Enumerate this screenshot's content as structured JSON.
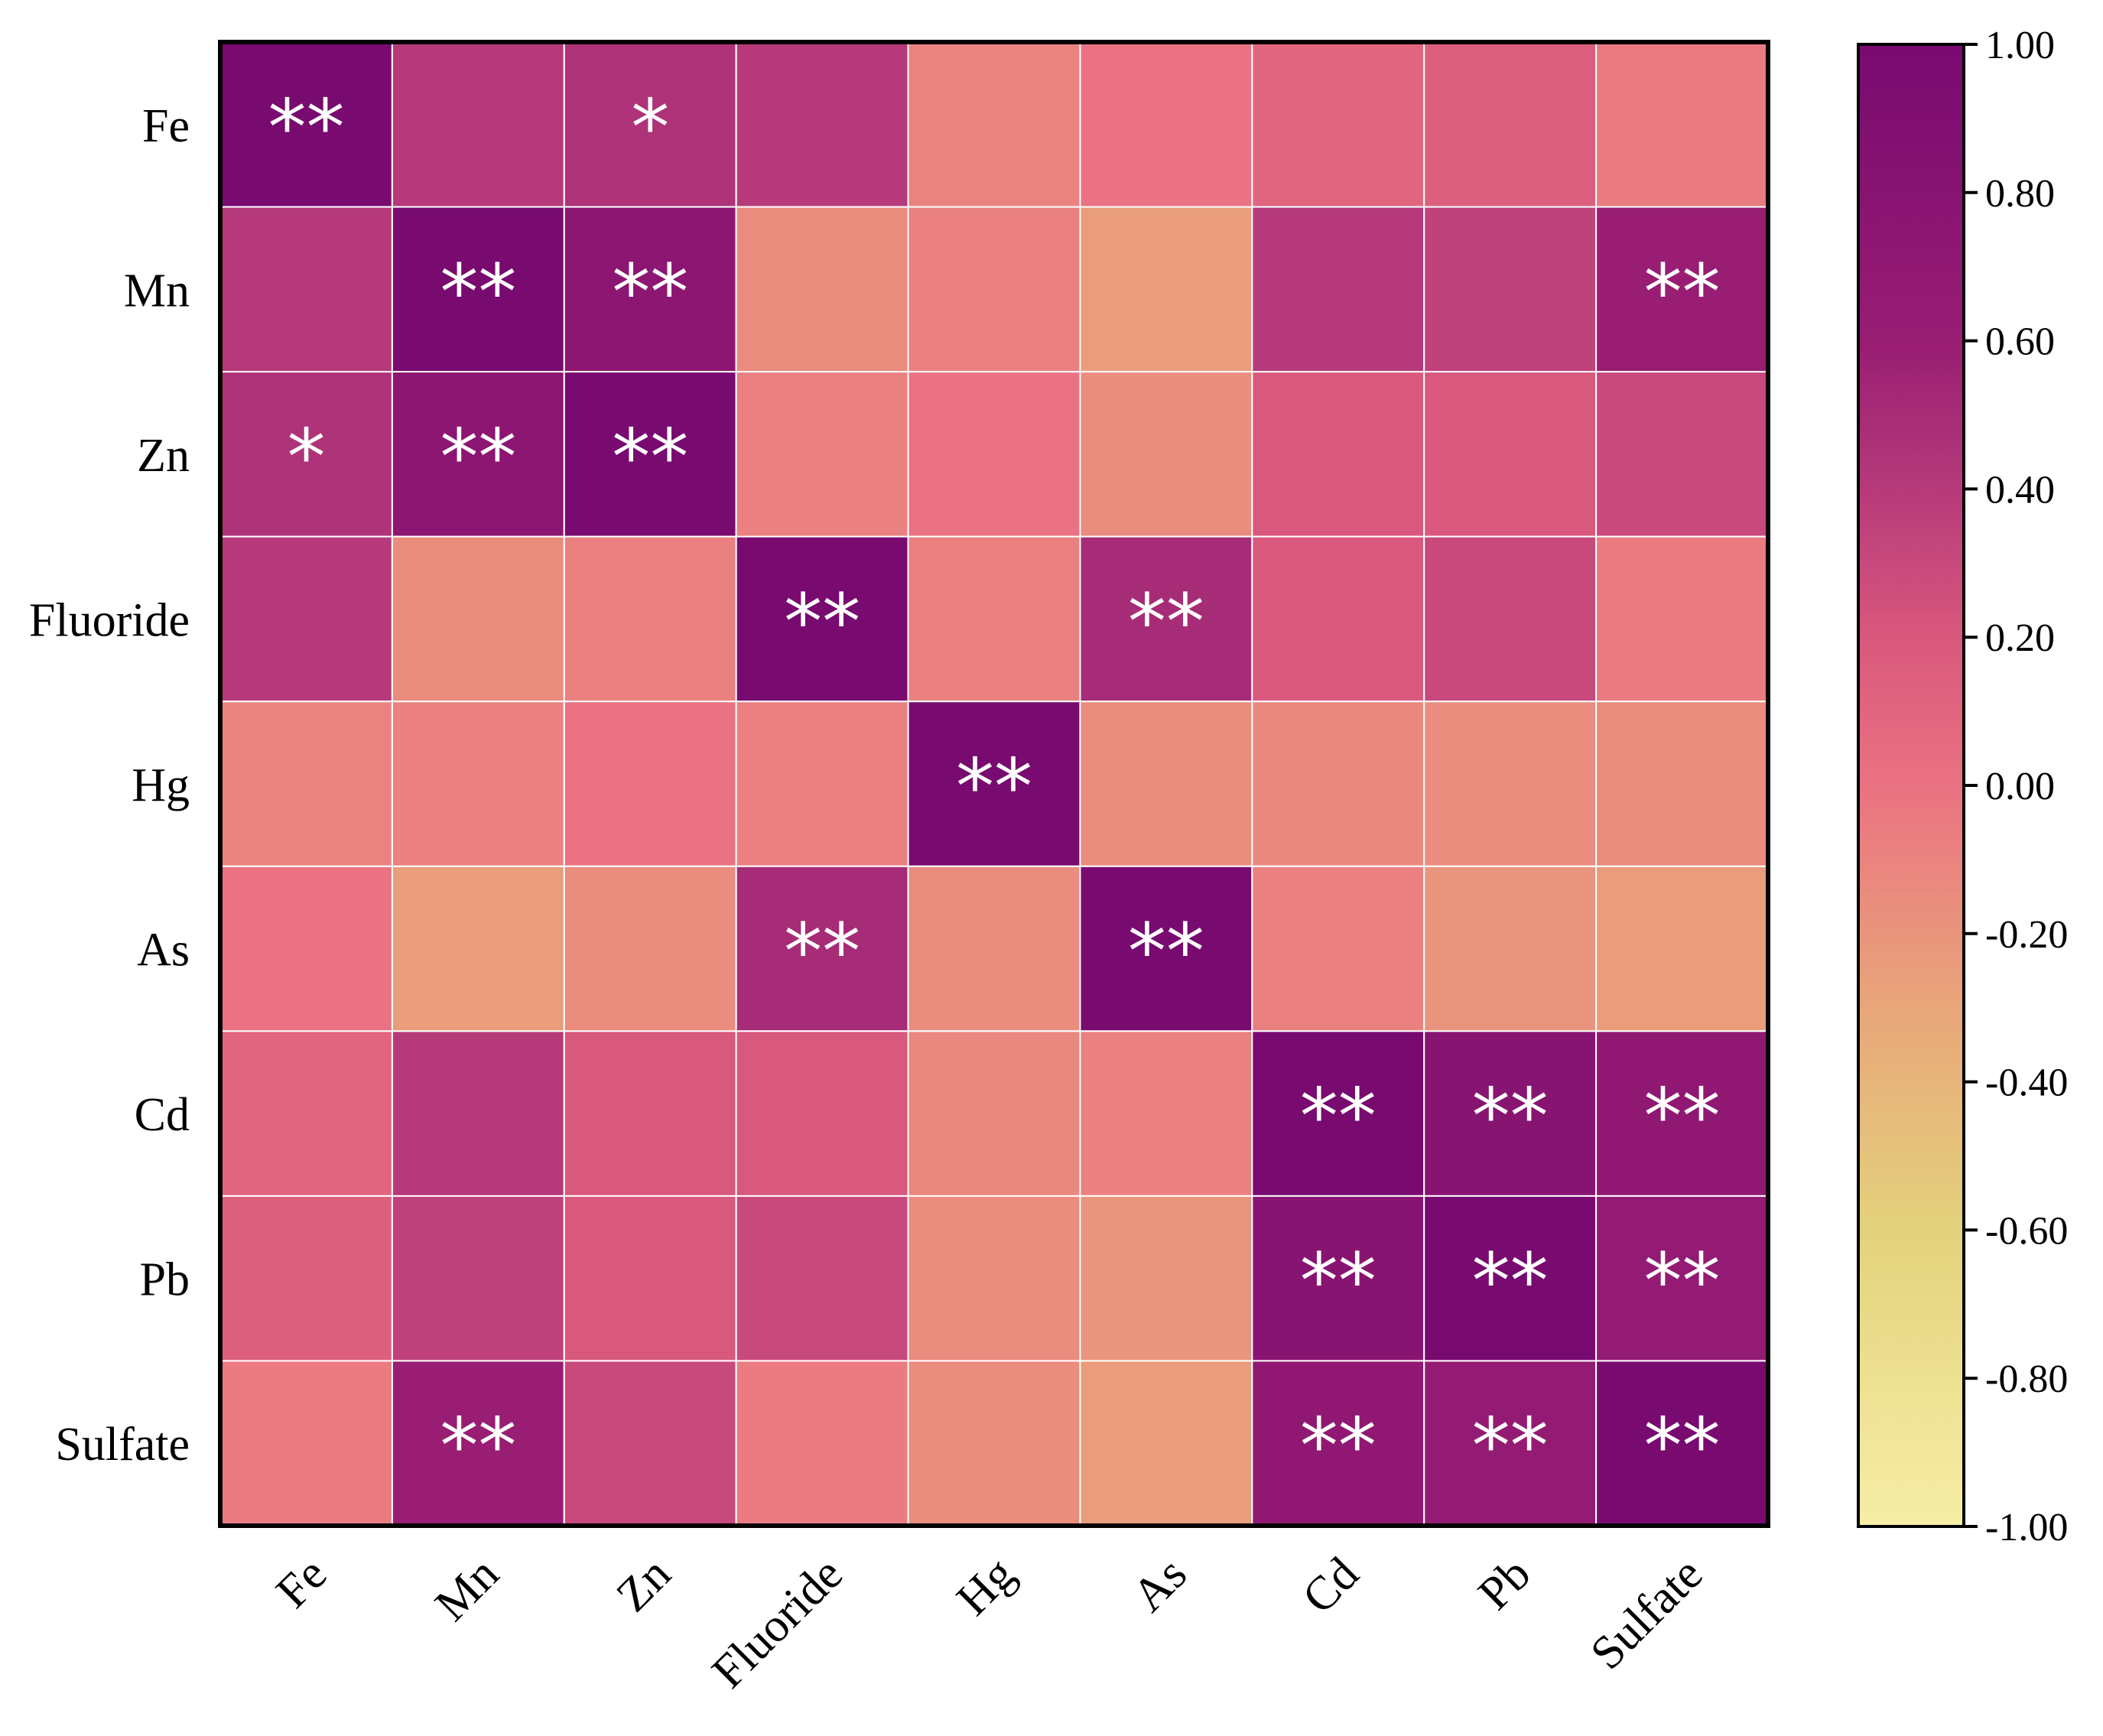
{
  "chart_data": {
    "type": "heatmap",
    "title": "",
    "xlabel": "",
    "ylabel": "",
    "variables": [
      "Fe",
      "Mn",
      "Zn",
      "Fluoride",
      "Hg",
      "As",
      "Cd",
      "Pb",
      "Sulfate"
    ],
    "values": [
      [
        1.0,
        0.4,
        0.45,
        0.4,
        -0.1,
        0.0,
        0.1,
        0.15,
        -0.05
      ],
      [
        0.4,
        1.0,
        0.75,
        -0.15,
        -0.08,
        -0.25,
        0.4,
        0.35,
        0.6
      ],
      [
        0.45,
        0.75,
        1.0,
        -0.08,
        0.0,
        -0.15,
        0.2,
        0.2,
        0.3
      ],
      [
        0.4,
        -0.15,
        -0.08,
        1.0,
        -0.08,
        0.5,
        0.2,
        0.3,
        -0.05
      ],
      [
        -0.1,
        -0.08,
        0.0,
        -0.08,
        1.0,
        -0.15,
        -0.12,
        -0.15,
        -0.15
      ],
      [
        0.0,
        -0.25,
        -0.15,
        0.5,
        -0.15,
        1.0,
        -0.08,
        -0.2,
        -0.25
      ],
      [
        0.1,
        0.4,
        0.2,
        0.2,
        -0.12,
        -0.08,
        1.0,
        0.8,
        0.7
      ],
      [
        0.15,
        0.35,
        0.2,
        0.3,
        -0.15,
        -0.2,
        0.8,
        1.0,
        0.65
      ],
      [
        -0.05,
        0.6,
        0.3,
        -0.05,
        -0.15,
        -0.25,
        0.7,
        0.65,
        1.0
      ]
    ],
    "significance": [
      [
        "**",
        "",
        "*",
        "",
        "",
        "",
        "",
        "",
        ""
      ],
      [
        "",
        "**",
        "**",
        "",
        "",
        "",
        "",
        "",
        "**"
      ],
      [
        "*",
        "**",
        "**",
        "",
        "",
        "",
        "",
        "",
        ""
      ],
      [
        "",
        "",
        "",
        "**",
        "",
        "**",
        "",
        "",
        ""
      ],
      [
        "",
        "",
        "",
        "",
        "**",
        "",
        "",
        "",
        ""
      ],
      [
        "",
        "",
        "",
        "**",
        "",
        "**",
        "",
        "",
        ""
      ],
      [
        "",
        "",
        "",
        "",
        "",
        "",
        "**",
        "**",
        "**"
      ],
      [
        "",
        "",
        "",
        "",
        "",
        "",
        "**",
        "**",
        "**"
      ],
      [
        "",
        "**",
        "",
        "",
        "",
        "",
        "**",
        "**",
        "**"
      ]
    ],
    "colorbar": {
      "range": [
        -1.0,
        1.0
      ],
      "ticks": [
        "1.00",
        "0.80",
        "0.60",
        "0.40",
        "0.20",
        "0.00",
        "-0.20",
        "-0.40",
        "-0.60",
        "-0.80",
        "-1.00"
      ],
      "colors": {
        "c_-1.0": "#f6eea6",
        "c_-0.6": "#e3d27c",
        "c_-0.3": "#e9a67a",
        "c_0.0": "#ea7282",
        "c_0.2": "#d9587d",
        "c_0.4": "#b63a7a",
        "c_0.6": "#981d73",
        "c_1.0": "#780a70"
      }
    }
  }
}
